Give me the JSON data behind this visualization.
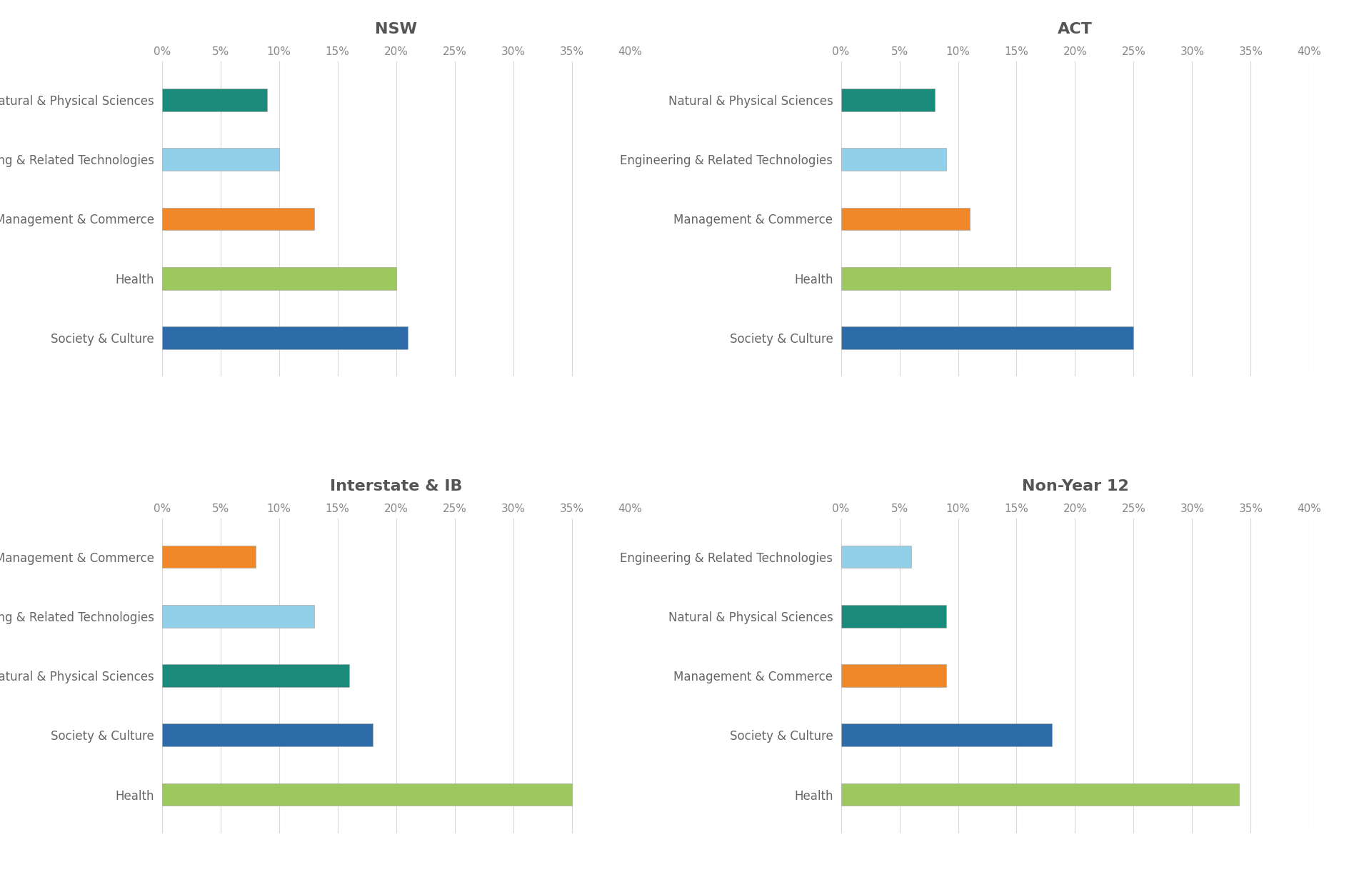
{
  "panels": [
    {
      "title": "NSW",
      "categories": [
        "Natural & Physical Sciences",
        "Engineering & Related Technologies",
        "Management & Commerce",
        "Health",
        "Society & Culture"
      ],
      "values": [
        9,
        10,
        13,
        20,
        21
      ],
      "colors": [
        "#1a8a7a",
        "#92d0ea",
        "#f0882a",
        "#9dc85e",
        "#2d6ca8"
      ]
    },
    {
      "title": "ACT",
      "categories": [
        "Natural & Physical Sciences",
        "Engineering & Related Technologies",
        "Management & Commerce",
        "Health",
        "Society & Culture"
      ],
      "values": [
        8,
        9,
        11,
        23,
        25
      ],
      "colors": [
        "#1a8a7a",
        "#92d0ea",
        "#f0882a",
        "#9dc85e",
        "#2d6ca8"
      ]
    },
    {
      "title": "Interstate & IB",
      "categories": [
        "Management & Commerce",
        "Engineering & Related Technologies",
        "Natural & Physical Sciences",
        "Society & Culture",
        "Health"
      ],
      "values": [
        8,
        13,
        16,
        18,
        35
      ],
      "colors": [
        "#f0882a",
        "#92d0ea",
        "#1a8a7a",
        "#2d6ca8",
        "#9dc85e"
      ]
    },
    {
      "title": "Non-Year 12",
      "categories": [
        "Engineering & Related Technologies",
        "Natural & Physical Sciences",
        "Management & Commerce",
        "Society & Culture",
        "Health"
      ],
      "values": [
        6,
        9,
        9,
        18,
        34
      ],
      "colors": [
        "#92d0ea",
        "#1a8a7a",
        "#f0882a",
        "#2d6ca8",
        "#9dc85e"
      ]
    }
  ],
  "xlim": [
    0,
    40
  ],
  "xticks": [
    0,
    5,
    10,
    15,
    20,
    25,
    30,
    35,
    40
  ],
  "xtick_labels": [
    "0%",
    "5%",
    "10%",
    "15%",
    "20%",
    "25%",
    "30%",
    "35%",
    "40%"
  ],
  "background_color": "#ffffff",
  "title_fontsize": 16,
  "label_fontsize": 12,
  "tick_fontsize": 11,
  "bar_height": 0.38,
  "title_color": "#555555",
  "label_color": "#666666",
  "tick_color": "#888888",
  "grid_color": "#d8d8d8",
  "bar_edge_color": "#aaaaaa"
}
